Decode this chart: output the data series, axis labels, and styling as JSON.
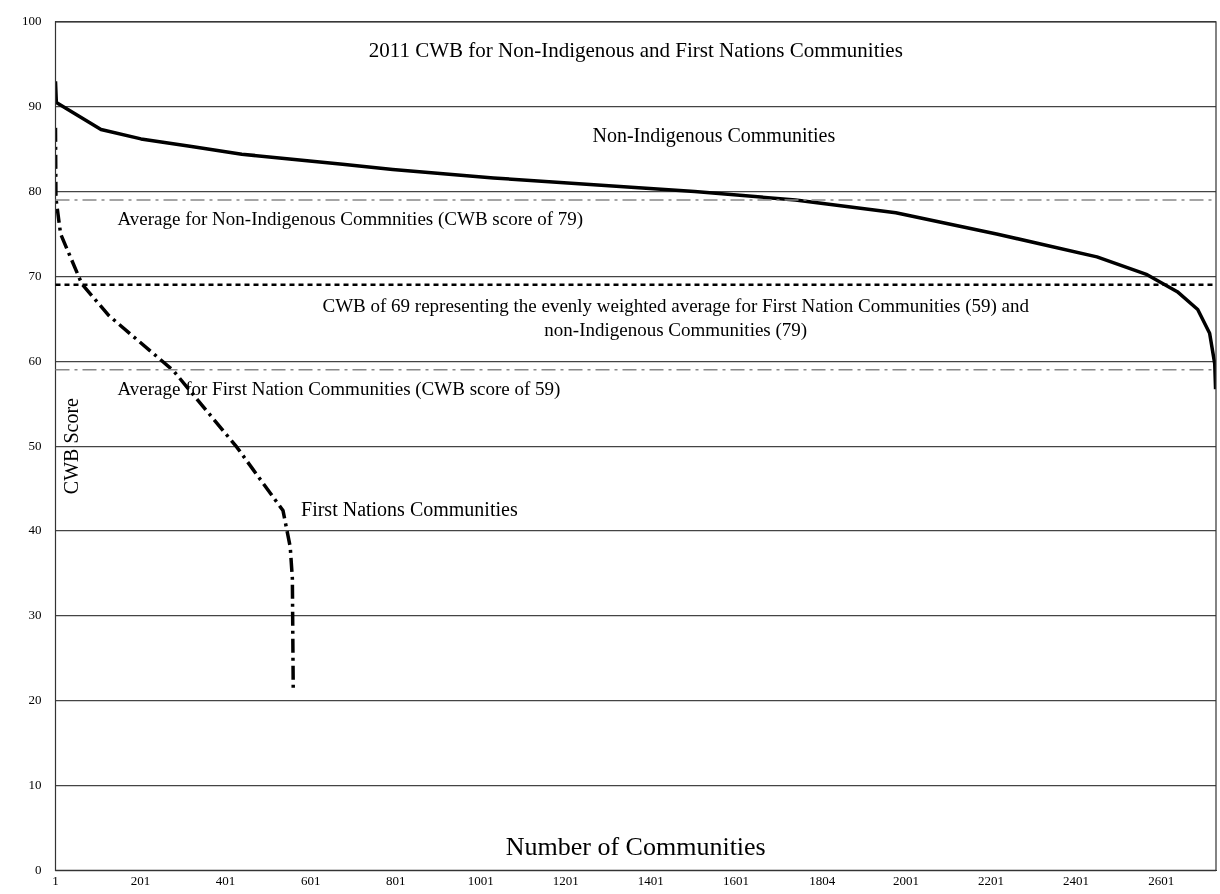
{
  "chart_data": {
    "type": "line",
    "title": "2011 CWB for Non-Indigenous and First Nations Communities",
    "xlabel": "Number of Communities",
    "ylabel": "CWB Score",
    "series": [
      {
        "name": "Non-Indigenous Communities",
        "color": "#000000",
        "line_style": "solid",
        "x": [
          1,
          3,
          36,
          108,
          202,
          321,
          439,
          557,
          676,
          794,
          1031,
          1267,
          1504,
          1741,
          1977,
          2214,
          2450,
          2568,
          2639,
          2687,
          2715,
          2727,
          2729
        ],
        "values": [
          93,
          90.5,
          89.5,
          87.3,
          86.2,
          85.3,
          84.4,
          83.8,
          83.2,
          82.6,
          81.6,
          80.8,
          80,
          79,
          77.5,
          75,
          72.3,
          70.2,
          68.2,
          66.1,
          63.3,
          59.7,
          56.7
        ]
      },
      {
        "name": "First Nations Communities",
        "color": "#000000",
        "line_style": "dashdot",
        "x": [
          1,
          2,
          13,
          63,
          126,
          278,
          427,
          536,
          553,
          558,
          560
        ],
        "values": [
          87.5,
          79.2,
          75,
          69.1,
          65.4,
          58.9,
          49.9,
          42.4,
          38.1,
          34.4,
          21.5
        ]
      }
    ],
    "xlim": [
      1,
      2730
    ],
    "xticks": [
      1,
      201,
      401,
      601,
      801,
      1001,
      1201,
      1401,
      1601,
      1804,
      2001,
      2201,
      2401,
      2601
    ],
    "ylim": [
      0,
      100
    ],
    "yticks": [
      0,
      10,
      20,
      30,
      40,
      50,
      60,
      70,
      80,
      90,
      100
    ],
    "ref_lines": [
      {
        "axis": "y",
        "value": 79,
        "label": "Average for Non-Indigenous Commnities (CWB score of 79)",
        "color": "#888888",
        "line_style": "dashdot"
      },
      {
        "axis": "y",
        "value": 69,
        "label": "CWB of 69 representing the evenly weighted average for First Nation Communities (59) and non-Indigenous Communities (79)",
        "color": "#000000",
        "line_style": "dashed"
      },
      {
        "axis": "y",
        "value": 59,
        "label": "Average for First Nation Communities (CWB score of 59)",
        "color": "#888888",
        "line_style": "dashdot"
      }
    ],
    "grid": "y",
    "legend": false,
    "marker": "none"
  }
}
